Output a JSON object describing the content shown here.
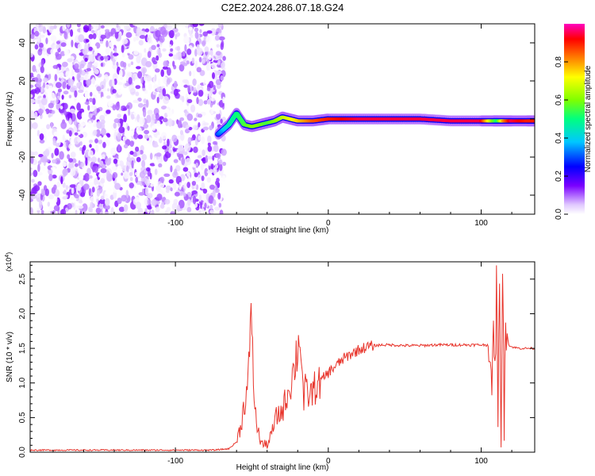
{
  "figure": {
    "title": "C2E2.2024.286.07.18.G24"
  },
  "chart_data": [
    {
      "type": "heatmap",
      "title": "C2E2.2024.286.07.18.G24",
      "xlabel": "Height of straight line (km)",
      "ylabel": "Frequency (Hz)",
      "xlim": [
        -195,
        135
      ],
      "ylim": [
        -50,
        50
      ],
      "xticks": [
        -100,
        0,
        100
      ],
      "xticklabels": [
        "-100",
        "0",
        "100"
      ],
      "yticks": [
        -40,
        -20,
        0,
        20,
        40
      ],
      "yticklabels": [
        "-40",
        "-20",
        "0",
        "20",
        "40"
      ],
      "colorbar": {
        "label": "Normalized spectral amplitude",
        "range": [
          0,
          1
        ],
        "ticks": [
          0.0,
          0.2,
          0.4,
          0.6,
          0.8
        ],
        "ticklabels": [
          "0.0",
          "0.2",
          "0.4",
          "0.6",
          "0.8"
        ],
        "colormap": "rainbow (white-purple-blue-cyan-green-yellow-red-magenta)"
      },
      "noise_region": {
        "x_range": [
          -195,
          -68
        ],
        "frequency_range": [
          -50,
          50
        ],
        "amplitude_range": [
          0.0,
          0.15
        ]
      },
      "signal_ridge": {
        "x": [
          -72,
          -65,
          -60,
          -55,
          -50,
          -45,
          -40,
          -35,
          -30,
          -25,
          -20,
          -10,
          0,
          20,
          40,
          60,
          80,
          100,
          108,
          111,
          115,
          120,
          130,
          135
        ],
        "frequency": [
          -8,
          -3,
          3,
          -3,
          -4,
          -3,
          -2,
          -1,
          1,
          0,
          -1,
          -1,
          0,
          0,
          0,
          0,
          -1,
          -1,
          -1,
          -1,
          -1,
          -1,
          -1,
          -1
        ],
        "amplitude": [
          0.3,
          0.45,
          0.5,
          0.55,
          0.6,
          0.6,
          0.55,
          0.6,
          0.65,
          0.7,
          0.75,
          0.85,
          0.9,
          0.95,
          0.95,
          0.95,
          0.95,
          0.95,
          0.6,
          0.5,
          0.8,
          0.95,
          0.9,
          0.9
        ]
      },
      "grid": false
    },
    {
      "type": "line",
      "title": "",
      "xlabel": "Height of straight line (km)",
      "ylabel": "SNR (10 * v/v)",
      "y_multiplier": "(x10^4)",
      "xlim": [
        -195,
        135
      ],
      "ylim": [
        0,
        2.75
      ],
      "xticks": [
        -100,
        0,
        100
      ],
      "xticklabels": [
        "-100",
        "0",
        "100"
      ],
      "yticks": [
        0.0,
        0.5,
        1.0,
        1.5,
        2.0,
        2.5
      ],
      "yticklabels": [
        "0.0",
        "0.5",
        "1.0",
        "1.5",
        "2.0",
        "2.5"
      ],
      "series": [
        {
          "color": "#e8352c",
          "x": [
            -195,
            -150,
            -100,
            -75,
            -65,
            -60,
            -57,
            -55,
            -53,
            -52,
            -51,
            -50,
            -49,
            -48,
            -46,
            -44,
            -42,
            -40,
            -38,
            -36,
            -34,
            -32,
            -30,
            -28,
            -26,
            -24,
            -22,
            -20,
            -18,
            -17,
            -16,
            -15,
            -14,
            -12,
            -10,
            -8,
            -6,
            -4,
            -2,
            0,
            5,
            10,
            15,
            20,
            25,
            30,
            35,
            40,
            50,
            60,
            70,
            80,
            90,
            100,
            105,
            107,
            108,
            109,
            110,
            111,
            112,
            113,
            114,
            115,
            116,
            118,
            120,
            125,
            130,
            135
          ],
          "y": [
            0.03,
            0.03,
            0.03,
            0.03,
            0.05,
            0.15,
            0.4,
            0.7,
            0.9,
            1.2,
            1.6,
            2.02,
            1.1,
            0.6,
            0.3,
            0.15,
            0.1,
            0.12,
            0.2,
            0.35,
            0.5,
            0.55,
            0.6,
            0.75,
            0.9,
            1.05,
            1.25,
            1.52,
            1.66,
            1.1,
            0.7,
            0.9,
            0.85,
            0.8,
            0.9,
            0.95,
            1.0,
            1.05,
            1.1,
            1.15,
            1.25,
            1.35,
            1.42,
            1.48,
            1.52,
            1.54,
            1.55,
            1.55,
            1.54,
            1.54,
            1.55,
            1.55,
            1.55,
            1.55,
            1.55,
            0.6,
            2.18,
            1.0,
            2.5,
            0.2,
            2.75,
            0.3,
            2.6,
            0.5,
            1.9,
            1.55,
            1.52,
            1.5,
            1.5,
            1.5
          ]
        }
      ],
      "grid": false
    }
  ]
}
